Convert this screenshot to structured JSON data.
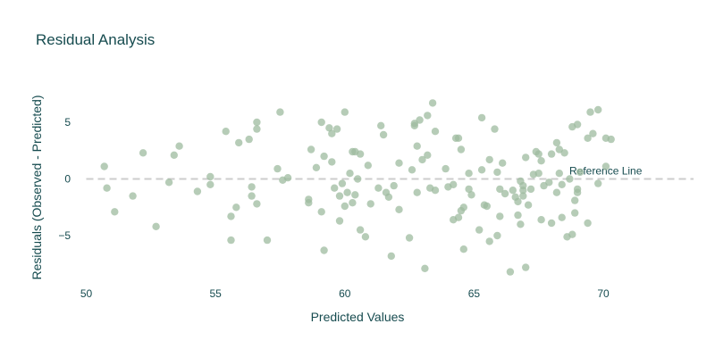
{
  "chart_data": {
    "type": "scatter",
    "title": "Residual Analysis",
    "xlabel": "Predicted Values",
    "ylabel": "Residuals (Observed - Predicted)",
    "xlim": [
      49.5,
      72.5
    ],
    "ylim": [
      -9.3,
      8.3
    ],
    "x_ticks": [
      50,
      55,
      60,
      65,
      70
    ],
    "y_ticks": [
      -5,
      0,
      5
    ],
    "y_tick_labels": [
      "−5",
      "0",
      "5"
    ],
    "grid": false,
    "point_color": "#9dbb9f",
    "reference_line": {
      "y": 0,
      "label": "Reference Line",
      "color": "#cccccc",
      "style": "dashed"
    },
    "series": [
      {
        "name": "",
        "points": [
          [
            50.7,
            1.1
          ],
          [
            50.8,
            -0.8
          ],
          [
            51.1,
            -2.9
          ],
          [
            51.8,
            -1.5
          ],
          [
            52.2,
            2.3
          ],
          [
            52.7,
            -4.2
          ],
          [
            53.2,
            -0.3
          ],
          [
            53.4,
            2.1
          ],
          [
            53.6,
            2.9
          ],
          [
            54.3,
            -1.1
          ],
          [
            54.8,
            0.2
          ],
          [
            54.8,
            -0.5
          ],
          [
            55.4,
            4.2
          ],
          [
            55.6,
            -5.4
          ],
          [
            55.6,
            -3.3
          ],
          [
            55.8,
            -2.5
          ],
          [
            55.9,
            3.2
          ],
          [
            56.3,
            3.5
          ],
          [
            56.4,
            -0.7
          ],
          [
            56.4,
            -1.5
          ],
          [
            56.6,
            5.0
          ],
          [
            56.6,
            4.4
          ],
          [
            56.6,
            -2.2
          ],
          [
            57.0,
            -5.4
          ],
          [
            57.4,
            0.9
          ],
          [
            57.5,
            5.9
          ],
          [
            57.6,
            -0.1
          ],
          [
            57.8,
            0.1
          ],
          [
            58.6,
            -1.8
          ],
          [
            58.6,
            -2.1
          ],
          [
            58.7,
            2.6
          ],
          [
            58.9,
            1.0
          ],
          [
            59.1,
            5.0
          ],
          [
            59.1,
            -2.9
          ],
          [
            59.2,
            2.0
          ],
          [
            59.2,
            -6.3
          ],
          [
            59.4,
            4.5
          ],
          [
            59.5,
            4.0
          ],
          [
            59.5,
            1.5
          ],
          [
            59.6,
            -0.8
          ],
          [
            59.7,
            4.4
          ],
          [
            59.8,
            -3.7
          ],
          [
            59.8,
            -1.5
          ],
          [
            59.9,
            -0.4
          ],
          [
            60.0,
            -2.4
          ],
          [
            60.0,
            5.9
          ],
          [
            60.1,
            -1.2
          ],
          [
            60.2,
            0.5
          ],
          [
            60.3,
            -2.1
          ],
          [
            60.3,
            2.4
          ],
          [
            60.4,
            2.4
          ],
          [
            60.4,
            -1.4
          ],
          [
            60.5,
            0.0
          ],
          [
            60.6,
            2.2
          ],
          [
            60.6,
            -4.5
          ],
          [
            60.8,
            -5.1
          ],
          [
            60.9,
            1.2
          ],
          [
            61.0,
            -2.2
          ],
          [
            61.3,
            -0.8
          ],
          [
            61.4,
            4.7
          ],
          [
            61.5,
            3.9
          ],
          [
            61.6,
            -1.2
          ],
          [
            61.7,
            -1.6
          ],
          [
            61.8,
            -6.8
          ],
          [
            61.9,
            -0.6
          ],
          [
            62.1,
            1.4
          ],
          [
            62.1,
            -2.7
          ],
          [
            62.5,
            -5.2
          ],
          [
            62.6,
            0.8
          ],
          [
            62.7,
            4.9
          ],
          [
            62.7,
            4.7
          ],
          [
            62.8,
            2.9
          ],
          [
            62.8,
            -1.2
          ],
          [
            62.9,
            5.2
          ],
          [
            63.0,
            1.7
          ],
          [
            63.1,
            -7.9
          ],
          [
            63.2,
            5.6
          ],
          [
            63.2,
            2.1
          ],
          [
            63.3,
            -0.8
          ],
          [
            63.4,
            6.7
          ],
          [
            63.5,
            4.2
          ],
          [
            63.5,
            -1.0
          ],
          [
            63.9,
            0.9
          ],
          [
            64.0,
            -0.7
          ],
          [
            64.2,
            -0.5
          ],
          [
            64.2,
            -3.6
          ],
          [
            64.3,
            3.6
          ],
          [
            64.4,
            3.6
          ],
          [
            64.4,
            -3.4
          ],
          [
            64.5,
            2.6
          ],
          [
            64.5,
            -2.8
          ],
          [
            64.6,
            -6.2
          ],
          [
            64.6,
            -2.5
          ],
          [
            64.8,
            -0.9
          ],
          [
            64.8,
            0.5
          ],
          [
            64.9,
            -1.4
          ],
          [
            65.2,
            -4.5
          ],
          [
            65.3,
            5.4
          ],
          [
            65.3,
            0.8
          ],
          [
            65.4,
            -2.3
          ],
          [
            65.5,
            -2.4
          ],
          [
            65.6,
            -5.5
          ],
          [
            65.6,
            1.7
          ],
          [
            65.8,
            4.4
          ],
          [
            65.9,
            -5.0
          ],
          [
            65.9,
            0.6
          ],
          [
            66.0,
            -3.3
          ],
          [
            66.0,
            -0.9
          ],
          [
            66.1,
            1.4
          ],
          [
            66.2,
            -1.3
          ],
          [
            66.4,
            -8.2
          ],
          [
            66.5,
            -1.0
          ],
          [
            66.6,
            -1.6
          ],
          [
            66.7,
            -2.0
          ],
          [
            66.7,
            -3.2
          ],
          [
            66.8,
            -4.0
          ],
          [
            66.8,
            -0.2
          ],
          [
            66.9,
            -0.6
          ],
          [
            66.9,
            -1.0
          ],
          [
            66.9,
            -1.5
          ],
          [
            67.0,
            -7.8
          ],
          [
            67.0,
            1.9
          ],
          [
            67.1,
            -2.3
          ],
          [
            67.2,
            -0.9
          ],
          [
            67.3,
            0.4
          ],
          [
            67.4,
            2.4
          ],
          [
            67.5,
            0.5
          ],
          [
            67.5,
            2.2
          ],
          [
            67.6,
            -3.6
          ],
          [
            67.6,
            1.6
          ],
          [
            67.7,
            -0.6
          ],
          [
            67.9,
            -0.3
          ],
          [
            68.0,
            -3.9
          ],
          [
            68.0,
            2.2
          ],
          [
            68.2,
            3.2
          ],
          [
            68.2,
            -1.2
          ],
          [
            68.3,
            2.6
          ],
          [
            68.3,
            0.5
          ],
          [
            68.4,
            -0.5
          ],
          [
            68.4,
            -3.4
          ],
          [
            68.5,
            2.3
          ],
          [
            68.6,
            -5.1
          ],
          [
            68.7,
            0.0
          ],
          [
            68.8,
            -4.9
          ],
          [
            68.8,
            4.6
          ],
          [
            68.9,
            -1.9
          ],
          [
            68.9,
            -3.0
          ],
          [
            69.0,
            -0.9
          ],
          [
            69.0,
            4.8
          ],
          [
            69.0,
            -1.2
          ],
          [
            69.1,
            0.6
          ],
          [
            69.4,
            -3.9
          ],
          [
            69.4,
            3.6
          ],
          [
            69.5,
            5.9
          ],
          [
            69.6,
            4.0
          ],
          [
            69.8,
            6.1
          ],
          [
            69.8,
            -0.4
          ],
          [
            70.1,
            3.6
          ],
          [
            70.1,
            1.1
          ],
          [
            70.3,
            3.5
          ]
        ]
      }
    ]
  }
}
